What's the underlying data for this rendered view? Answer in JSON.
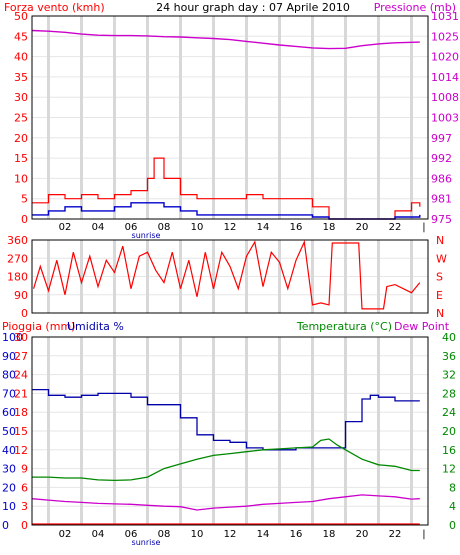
{
  "chart_data": [
    {
      "type": "line",
      "title": "24 hour graph day : 07 Aprile 2010",
      "left_axis_label": "Forza vento (kmh)",
      "right_axis_label": "Pressione (mb)",
      "left_ticks": [
        "0",
        "5",
        "10",
        "15",
        "20",
        "25",
        "30",
        "35",
        "40",
        "45",
        "50"
      ],
      "right_ticks": [
        "975",
        "981",
        "986",
        "992",
        "997",
        "1003",
        "1008",
        "1014",
        "1020",
        "1025",
        "1031"
      ],
      "hour_labels": [
        "02",
        "04",
        "06",
        "08",
        "10",
        "12",
        "14",
        "16",
        "18",
        "20",
        "22"
      ],
      "sunrise_label": "sunrise",
      "ylim_left": [
        0,
        50
      ],
      "ylim_right": [
        975,
        1031
      ],
      "series": [
        {
          "name": "Pressione",
          "color": "#cc00cc",
          "x": [
            0,
            1,
            2,
            3,
            4,
            5,
            6,
            7,
            8,
            9,
            10,
            11,
            12,
            13,
            14,
            15,
            16,
            17,
            18,
            19,
            20,
            21,
            22,
            23.5
          ],
          "values": [
            1027.0,
            1026.8,
            1026.5,
            1026.0,
            1025.7,
            1025.6,
            1025.6,
            1025.5,
            1025.3,
            1025.2,
            1025.0,
            1024.8,
            1024.5,
            1024.0,
            1023.5,
            1023.0,
            1022.6,
            1022.2,
            1022.0,
            1022.1,
            1022.8,
            1023.3,
            1023.6,
            1023.8
          ]
        },
        {
          "name": "Vento medio",
          "color": "#0000cc",
          "x": [
            0,
            1,
            2,
            3,
            4,
            5,
            6,
            7,
            8,
            9,
            10,
            11,
            12,
            13,
            14,
            15,
            16,
            17,
            18,
            19,
            20,
            21,
            22,
            23.5
          ],
          "values": [
            1,
            2,
            3,
            2,
            2,
            3,
            4,
            4,
            3,
            2,
            1,
            1,
            1,
            1,
            1,
            1,
            1,
            0.5,
            0,
            0,
            0,
            0,
            0.5,
            1
          ]
        },
        {
          "name": "Raffica",
          "color": "#ff0000",
          "x": [
            0,
            1,
            2,
            3,
            4,
            5,
            6,
            7,
            7.4,
            8,
            9,
            10,
            11,
            12,
            13,
            14,
            15,
            16,
            17,
            18,
            19,
            20,
            21,
            22,
            23,
            23.5
          ],
          "values": [
            4,
            6,
            5,
            6,
            5,
            6,
            7,
            10,
            15,
            10,
            6,
            5,
            5,
            5,
            6,
            5,
            5,
            5,
            3,
            0,
            0,
            0,
            0,
            2,
            4,
            3
          ]
        }
      ]
    },
    {
      "type": "line",
      "title": "",
      "left_ticks": [
        "0",
        "90",
        "180",
        "270",
        "360"
      ],
      "right_ticks": [
        "N",
        "E",
        "S",
        "W",
        "N"
      ],
      "ylim": [
        0,
        360
      ],
      "series": [
        {
          "name": "Direzione vento",
          "color": "#ff0000",
          "x": [
            0.1,
            0.5,
            1,
            1.5,
            2,
            2.5,
            3,
            3.5,
            4,
            4.5,
            5,
            5.5,
            6,
            6.5,
            7,
            7.5,
            8,
            8.5,
            9,
            9.5,
            10,
            10.5,
            11,
            11.5,
            12,
            12.5,
            13,
            13.5,
            14,
            14.5,
            15,
            15.5,
            16,
            16.5,
            17,
            17.5,
            18,
            18.2,
            19.8,
            20,
            21.3,
            21.5,
            22,
            22.5,
            23,
            23.5
          ],
          "values": [
            120,
            230,
            110,
            260,
            90,
            300,
            150,
            280,
            130,
            260,
            200,
            330,
            120,
            280,
            300,
            210,
            150,
            300,
            120,
            260,
            80,
            300,
            120,
            300,
            230,
            120,
            280,
            350,
            130,
            300,
            250,
            120,
            260,
            350,
            40,
            50,
            40,
            345,
            345,
            20,
            20,
            130,
            140,
            120,
            100,
            150
          ]
        }
      ]
    },
    {
      "type": "line",
      "title": "",
      "labels": {
        "rain": "Pioggia (mm)",
        "humidity": "Umidita %",
        "temperature": "Temperatura (°C)",
        "dewpoint": "Dew Point"
      },
      "rain_ticks": [
        "0",
        "3",
        "6",
        "9",
        "12",
        "15",
        "18",
        "21",
        "24",
        "27",
        "30"
      ],
      "humidity_ticks": [
        "0",
        "10",
        "20",
        "30",
        "40",
        "50",
        "60",
        "70",
        "80",
        "90",
        "100"
      ],
      "temperature_ticks": [
        "0",
        "4",
        "8",
        "12",
        "16",
        "20",
        "24",
        "28",
        "32",
        "36",
        "40"
      ],
      "ylim_humidity": [
        0,
        100
      ],
      "ylim_temperature": [
        0,
        40
      ],
      "series": [
        {
          "name": "Umidita %",
          "color": "#0000aa",
          "x": [
            0,
            0.5,
            1,
            2,
            3,
            4,
            5,
            6,
            7,
            8,
            9,
            10,
            11,
            12,
            13,
            14,
            15,
            16,
            17,
            17.5,
            18,
            19,
            20,
            20.5,
            21,
            22,
            23,
            23.5
          ],
          "values": [
            72,
            72,
            69,
            68,
            69,
            70,
            70,
            68,
            64,
            64,
            57,
            48,
            45,
            44,
            41,
            40,
            40,
            41,
            41,
            41,
            41,
            55,
            67,
            69,
            68,
            66,
            66,
            66
          ]
        },
        {
          "name": "Temperatura (°C)",
          "color": "#008800",
          "x": [
            0,
            1,
            2,
            3,
            4,
            5,
            6,
            7,
            8,
            9,
            10,
            11,
            12,
            13,
            14,
            15,
            16,
            17,
            17.5,
            18,
            18.5,
            19,
            20,
            21,
            22,
            23,
            23.5
          ],
          "values": [
            10.2,
            10.2,
            10.0,
            10.0,
            9.6,
            9.5,
            9.6,
            10.2,
            12.0,
            13.0,
            14.0,
            14.8,
            15.2,
            15.6,
            16.0,
            16.2,
            16.4,
            16.6,
            18.0,
            18.3,
            17.0,
            16.0,
            14.0,
            12.8,
            12.5,
            11.6,
            11.6
          ]
        },
        {
          "name": "Dew Point",
          "color": "#cc00cc",
          "x": [
            0,
            1,
            2,
            3,
            4,
            5,
            6,
            7,
            8,
            9,
            10,
            11,
            12,
            13,
            14,
            15,
            16,
            17,
            18,
            19,
            20,
            21,
            22,
            23,
            23.5
          ],
          "values": [
            5.6,
            5.3,
            5.0,
            4.8,
            4.6,
            4.5,
            4.4,
            4.2,
            4.0,
            3.9,
            3.2,
            3.6,
            3.8,
            4.0,
            4.4,
            4.6,
            4.8,
            5.0,
            5.6,
            6.0,
            6.4,
            6.2,
            6.0,
            5.5,
            5.6
          ]
        },
        {
          "name": "Pioggia (mm)",
          "color": "#ff0000",
          "x": [
            0,
            23.5
          ],
          "values": [
            0,
            0
          ]
        }
      ]
    }
  ]
}
